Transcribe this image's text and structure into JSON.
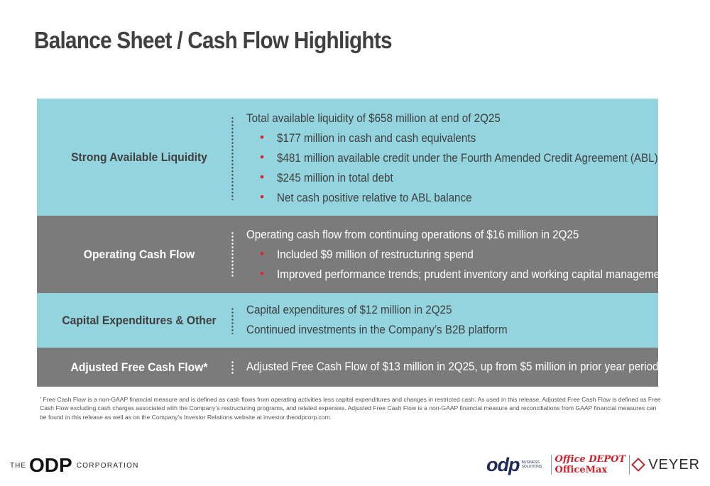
{
  "title": "Balance Sheet / Cash Flow Highlights",
  "rows": [
    {
      "label": "Strong Available Liquidity",
      "lines": [
        {
          "type": "text",
          "text": "Total available liquidity of $658 million at end of 2Q25"
        },
        {
          "type": "bullet",
          "text": "$177 million in cash and cash equivalents"
        },
        {
          "type": "bullet",
          "text": "$481 million available credit under the Fourth Amended Credit Agreement (ABL)"
        },
        {
          "type": "bullet",
          "text": "$245 million in total debt"
        },
        {
          "type": "bullet",
          "text": "Net cash positive relative to ABL balance"
        }
      ]
    },
    {
      "label": "Operating Cash Flow",
      "lines": [
        {
          "type": "text",
          "text": "Operating cash flow from continuing operations of $16 million in 2Q25"
        },
        {
          "type": "bullet",
          "text": "Included $9 million of restructuring spend"
        },
        {
          "type": "bullet",
          "text": "Improved performance trends; prudent inventory and working capital management"
        }
      ]
    },
    {
      "label": "Capital Expenditures & Other",
      "lines": [
        {
          "type": "text",
          "text": "Capital expenditures of $12 million in 2Q25"
        },
        {
          "type": "text",
          "text": "Continued investments in the Company’s B2B platform"
        }
      ]
    },
    {
      "label": "Adjusted Free Cash Flow*",
      "lines": [
        {
          "type": "text",
          "text": "Adjusted Free Cash Flow of $13 million in 2Q25, up from $5 million in prior year period"
        }
      ]
    }
  ],
  "bullet_glyph": "•",
  "colors": {
    "teal": "#93d4df",
    "gray": "#7b7b7b",
    "bullet": "#e8202a"
  },
  "footnote": {
    "marker": "*",
    "text": "Free Cash Flow is a non-GAAP financial measure and is defined as cash flows from operating activities less capital expenditures and changes in restricted cash. As used in this release, Adjusted Free Cash Flow is defined as Free Cash Flow excluding cash charges associated with the Company’s restructuring programs, and related expenses. Adjusted Free Cash Flow is a non-GAAP financial measure and reconciliations from GAAP financial measures can be found in this release as well as on the Company’s Investor Relations website at investor.theodpcorp.com."
  },
  "logo_left": {
    "the": "THE",
    "odp": "ODP",
    "corporation": "CORPORATION"
  },
  "logos_right": {
    "odp": "odp",
    "odp_tagline": "BUSINESS SOLUTIONS",
    "office_depot": "Office DEPOT",
    "officemax": "OfficeMax",
    "veyer": "VEYER"
  }
}
